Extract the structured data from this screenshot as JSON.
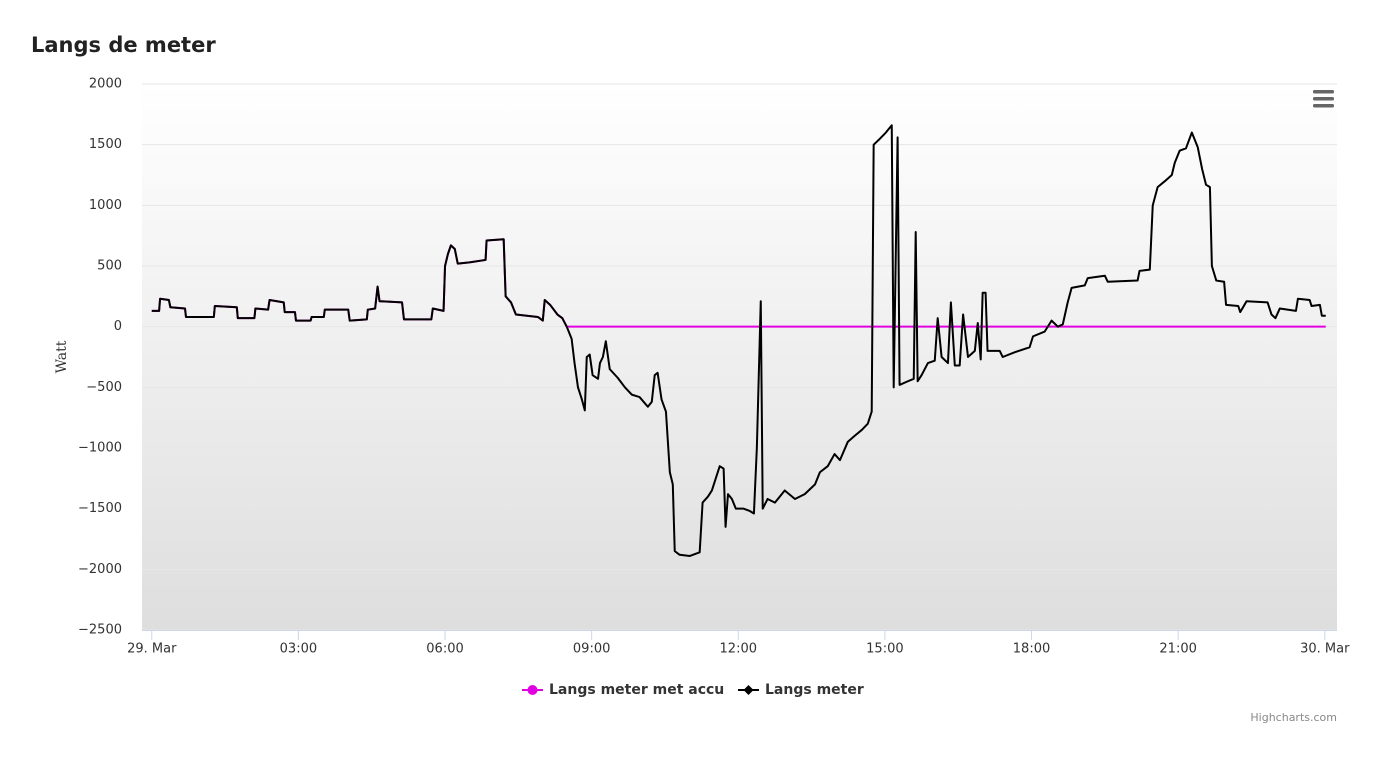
{
  "chart_data": {
    "type": "line",
    "title": "Langs de meter",
    "y_label": "Watt",
    "credits": "Highcharts.com",
    "xlim": [
      -0.2,
      24.25
    ],
    "xticks": [
      {
        "value": 0,
        "label": "29. Mar"
      },
      {
        "value": 3,
        "label": "03:00"
      },
      {
        "value": 6,
        "label": "06:00"
      },
      {
        "value": 9,
        "label": "09:00"
      },
      {
        "value": 12,
        "label": "12:00"
      },
      {
        "value": 15,
        "label": "15:00"
      },
      {
        "value": 18,
        "label": "18:00"
      },
      {
        "value": 21,
        "label": "21:00"
      },
      {
        "value": 24,
        "label": "30. Mar"
      }
    ],
    "ylim": [
      -2500,
      2000
    ],
    "yticks": [
      {
        "value": -2500,
        "label": "−2500"
      },
      {
        "value": -2000,
        "label": "−2000"
      },
      {
        "value": -1500,
        "label": "−1500"
      },
      {
        "value": -1000,
        "label": "−1000"
      },
      {
        "value": -500,
        "label": "−500"
      },
      0,
      500,
      1000,
      1500,
      2000
    ],
    "grid": true,
    "legend": "bottom",
    "series": [
      {
        "name": "Langs meter met accu",
        "color": "#e000e0",
        "marker": "circle",
        "x": [
          0,
          0.15,
          0.17,
          0.35,
          0.38,
          0.68,
          0.7,
          1.27,
          1.29,
          1.74,
          1.76,
          2.1,
          2.12,
          2.38,
          2.41,
          2.7,
          2.72,
          2.93,
          2.95,
          3.25,
          3.27,
          3.52,
          3.54,
          4.02,
          4.05,
          4.4,
          4.42,
          4.57,
          4.62,
          4.66,
          5.12,
          5.16,
          5.72,
          5.75,
          5.97,
          6.0,
          6.06,
          6.12,
          6.2,
          6.26,
          6.5,
          6.83,
          6.85,
          7.2,
          7.24,
          7.35,
          7.45,
          7.9,
          8.0,
          8.04,
          8.15,
          8.3,
          8.4,
          8.49,
          24.02
        ],
        "values": [
          130,
          130,
          230,
          220,
          160,
          150,
          80,
          80,
          170,
          160,
          70,
          70,
          150,
          140,
          220,
          200,
          120,
          120,
          50,
          50,
          80,
          80,
          140,
          140,
          50,
          60,
          140,
          150,
          330,
          210,
          200,
          60,
          60,
          150,
          130,
          500,
          600,
          670,
          640,
          520,
          530,
          550,
          710,
          720,
          250,
          200,
          100,
          80,
          50,
          220,
          180,
          100,
          70,
          0,
          0
        ]
      },
      {
        "name": "Langs meter",
        "color": "#000000",
        "marker": "diamond",
        "x": [
          0,
          0.15,
          0.17,
          0.35,
          0.38,
          0.68,
          0.7,
          1.27,
          1.29,
          1.74,
          1.76,
          2.1,
          2.12,
          2.38,
          2.41,
          2.7,
          2.72,
          2.93,
          2.95,
          3.25,
          3.27,
          3.52,
          3.54,
          4.02,
          4.05,
          4.4,
          4.42,
          4.57,
          4.62,
          4.66,
          5.12,
          5.16,
          5.72,
          5.75,
          5.97,
          6.0,
          6.06,
          6.12,
          6.2,
          6.26,
          6.5,
          6.83,
          6.85,
          7.2,
          7.24,
          7.35,
          7.45,
          7.9,
          8.0,
          8.04,
          8.15,
          8.3,
          8.4,
          8.49,
          8.59,
          8.65,
          8.72,
          8.8,
          8.86,
          8.9,
          8.96,
          9.02,
          9.13,
          9.17,
          9.23,
          9.29,
          9.37,
          9.53,
          9.68,
          9.82,
          9.98,
          10.15,
          10.23,
          10.29,
          10.35,
          10.43,
          10.52,
          10.6,
          10.66,
          10.7,
          10.8,
          11.01,
          11.21,
          11.27,
          11.38,
          11.46,
          11.54,
          11.62,
          11.7,
          11.74,
          11.79,
          11.87,
          11.95,
          12.11,
          12.24,
          12.32,
          12.38,
          12.46,
          12.5,
          12.6,
          12.75,
          12.95,
          13.16,
          13.36,
          13.57,
          13.67,
          13.83,
          13.97,
          14.08,
          14.24,
          14.38,
          14.53,
          14.65,
          14.73,
          14.77,
          14.9,
          15.02,
          15.14,
          15.18,
          15.26,
          15.3,
          15.47,
          15.59,
          15.63,
          15.67,
          15.75,
          15.88,
          16.02,
          16.08,
          16.16,
          16.29,
          16.35,
          16.43,
          16.53,
          16.6,
          16.7,
          16.84,
          16.9,
          16.96,
          17.0,
          17.06,
          17.1,
          17.35,
          17.41,
          17.66,
          17.96,
          18.03,
          18.27,
          18.41,
          18.54,
          18.64,
          18.74,
          18.82,
          19.09,
          19.15,
          19.5,
          19.56,
          20.17,
          20.21,
          20.42,
          20.48,
          20.58,
          20.73,
          20.87,
          20.93,
          21.03,
          21.16,
          21.28,
          21.4,
          21.49,
          21.57,
          21.65,
          21.69,
          21.78,
          21.94,
          21.98,
          22.23,
          22.27,
          22.4,
          22.83,
          22.91,
          22.99,
          23.08,
          23.41,
          23.45,
          23.69,
          23.73,
          23.9,
          23.94,
          24.02
        ],
        "values": [
          130,
          130,
          230,
          220,
          160,
          150,
          80,
          80,
          170,
          160,
          70,
          70,
          150,
          140,
          220,
          200,
          120,
          120,
          50,
          50,
          80,
          80,
          140,
          140,
          50,
          60,
          140,
          150,
          330,
          210,
          200,
          60,
          60,
          150,
          130,
          500,
          600,
          670,
          640,
          520,
          530,
          550,
          710,
          720,
          250,
          200,
          100,
          80,
          50,
          220,
          180,
          100,
          70,
          0,
          -100,
          -300,
          -500,
          -600,
          -690,
          -250,
          -230,
          -400,
          -430,
          -300,
          -250,
          -120,
          -350,
          -420,
          -500,
          -560,
          -580,
          -660,
          -620,
          -400,
          -380,
          -600,
          -700,
          -1200,
          -1300,
          -1850,
          -1880,
          -1890,
          -1860,
          -1450,
          -1400,
          -1350,
          -1250,
          -1150,
          -1170,
          -1650,
          -1380,
          -1420,
          -1500,
          -1500,
          -1520,
          -1540,
          -1000,
          210,
          -1500,
          -1420,
          -1450,
          -1350,
          -1420,
          -1380,
          -1300,
          -1200,
          -1150,
          -1050,
          -1100,
          -950,
          -900,
          -850,
          -800,
          -700,
          1500,
          1550,
          1600,
          1660,
          -500,
          1560,
          -480,
          -450,
          -430,
          780,
          -450,
          -400,
          -300,
          -280,
          70,
          -250,
          -300,
          200,
          -320,
          -320,
          100,
          -250,
          -200,
          30,
          -270,
          280,
          280,
          -200,
          -200,
          -250,
          -210,
          -170,
          -80,
          -40,
          50,
          0,
          20,
          200,
          320,
          340,
          400,
          420,
          370,
          380,
          460,
          470,
          1000,
          1150,
          1200,
          1250,
          1350,
          1450,
          1470,
          1600,
          1480,
          1300,
          1170,
          1150,
          500,
          380,
          370,
          180,
          170,
          120,
          210,
          200,
          100,
          70,
          150,
          130,
          230,
          220,
          170,
          180,
          90,
          90
        ]
      }
    ]
  }
}
